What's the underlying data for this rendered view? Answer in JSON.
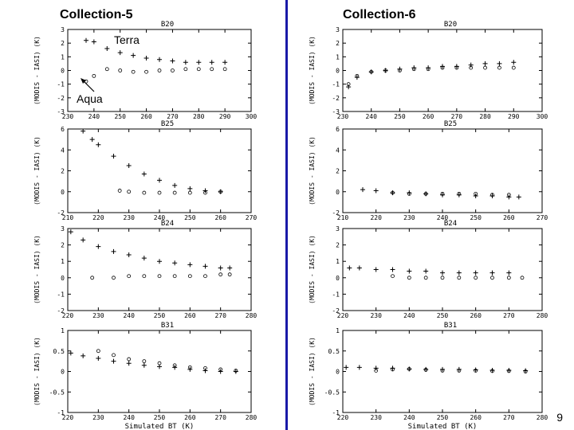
{
  "headings": {
    "left": "Collection-5",
    "right": "Collection-6"
  },
  "slide_number": "9",
  "annotations": {
    "terra": "Terra",
    "aqua": "Aqua"
  },
  "colors": {
    "divider": "#1a1aa8"
  },
  "chart_data": [
    {
      "id": "c5-b20",
      "type": "scatter",
      "title": "B20",
      "ylabel": "(MODIS - IASI) (K)",
      "xlabel": "",
      "xlim": [
        230,
        300
      ],
      "ylim": [
        -3,
        3
      ],
      "xticks": [
        230,
        240,
        250,
        260,
        270,
        280,
        290,
        300
      ],
      "yticks": [
        -3,
        -2,
        -1,
        0,
        1,
        2,
        3
      ],
      "series": [
        {
          "marker": "plus",
          "x": [
            237,
            240,
            245,
            250,
            255,
            260,
            265,
            270,
            275,
            280,
            285,
            290
          ],
          "y": [
            2.2,
            2.1,
            1.6,
            1.3,
            1.1,
            0.9,
            0.8,
            0.7,
            0.6,
            0.6,
            0.6,
            0.6
          ]
        },
        {
          "marker": "circle",
          "x": [
            237,
            240,
            245,
            250,
            255,
            260,
            265,
            270,
            275,
            280,
            285,
            290
          ],
          "y": [
            -0.8,
            -0.4,
            0.1,
            0.0,
            -0.1,
            -0.1,
            0.0,
            0.0,
            0.1,
            0.1,
            0.1,
            0.1
          ]
        }
      ]
    },
    {
      "id": "c6-b20",
      "type": "scatter",
      "title": "B20",
      "ylabel": "(MODIS - IASI) (K)",
      "xlabel": "",
      "xlim": [
        230,
        300
      ],
      "ylim": [
        -3,
        3
      ],
      "xticks": [
        230,
        240,
        250,
        260,
        270,
        280,
        290,
        300
      ],
      "yticks": [
        -3,
        -2,
        -1,
        0,
        1,
        2,
        3
      ],
      "series": [
        {
          "marker": "plus",
          "x": [
            232,
            235,
            240,
            245,
            250,
            255,
            260,
            265,
            270,
            275,
            280,
            285,
            290
          ],
          "y": [
            -1.2,
            -0.5,
            -0.1,
            0.0,
            0.1,
            0.2,
            0.2,
            0.3,
            0.3,
            0.4,
            0.5,
            0.5,
            0.6
          ]
        },
        {
          "marker": "circle",
          "x": [
            232,
            235,
            240,
            245,
            250,
            255,
            260,
            265,
            270,
            275,
            280,
            285,
            290
          ],
          "y": [
            -1.0,
            -0.4,
            -0.1,
            0.0,
            0.0,
            0.1,
            0.1,
            0.2,
            0.2,
            0.2,
            0.2,
            0.2,
            0.2
          ]
        }
      ]
    },
    {
      "id": "c5-b25",
      "type": "scatter",
      "title": "B25",
      "ylabel": "(MODIS - IASI) (K)",
      "xlabel": "",
      "xlim": [
        210,
        270
      ],
      "ylim": [
        -2,
        6
      ],
      "xticks": [
        210,
        220,
        230,
        240,
        250,
        260,
        270
      ],
      "yticks": [
        -2,
        0,
        2,
        4,
        6
      ],
      "series": [
        {
          "marker": "plus",
          "x": [
            215,
            218,
            220,
            225,
            230,
            235,
            240,
            245,
            250,
            255,
            260
          ],
          "y": [
            5.8,
            5.0,
            4.5,
            3.4,
            2.5,
            1.7,
            1.1,
            0.6,
            0.3,
            0.1,
            0.0
          ]
        },
        {
          "marker": "circle",
          "x": [
            227,
            230,
            235,
            240,
            245,
            250,
            255,
            260
          ],
          "y": [
            0.1,
            0.0,
            -0.1,
            -0.1,
            -0.1,
            -0.1,
            -0.1,
            0.0
          ]
        }
      ]
    },
    {
      "id": "c6-b25",
      "type": "scatter",
      "title": "B25",
      "ylabel": "(MODIS - IASI) (K)",
      "xlabel": "",
      "xlim": [
        210,
        270
      ],
      "ylim": [
        -2,
        6
      ],
      "xticks": [
        210,
        220,
        230,
        240,
        250,
        260,
        270
      ],
      "yticks": [
        -2,
        0,
        2,
        4,
        6
      ],
      "series": [
        {
          "marker": "plus",
          "x": [
            216,
            220,
            225,
            230,
            235,
            240,
            245,
            250,
            255,
            260,
            263
          ],
          "y": [
            0.2,
            0.1,
            -0.1,
            -0.1,
            -0.2,
            -0.3,
            -0.3,
            -0.4,
            -0.4,
            -0.5,
            -0.5
          ]
        },
        {
          "marker": "circle",
          "x": [
            225,
            230,
            235,
            240,
            245,
            250,
            255,
            260
          ],
          "y": [
            -0.1,
            -0.2,
            -0.2,
            -0.2,
            -0.2,
            -0.2,
            -0.3,
            -0.3
          ]
        }
      ]
    },
    {
      "id": "c5-b24",
      "type": "scatter",
      "title": "B24",
      "ylabel": "(MODIS - IASI) (K)",
      "xlabel": "",
      "xlim": [
        220,
        280
      ],
      "ylim": [
        -2,
        3
      ],
      "xticks": [
        220,
        230,
        240,
        250,
        260,
        270,
        280
      ],
      "yticks": [
        -2,
        -1,
        0,
        1,
        2,
        3
      ],
      "series": [
        {
          "marker": "plus",
          "x": [
            221,
            225,
            230,
            235,
            240,
            245,
            250,
            255,
            260,
            265,
            270,
            273
          ],
          "y": [
            2.8,
            2.3,
            1.9,
            1.6,
            1.4,
            1.2,
            1.0,
            0.9,
            0.8,
            0.7,
            0.6,
            0.6
          ]
        },
        {
          "marker": "circle",
          "x": [
            228,
            235,
            240,
            245,
            250,
            255,
            260,
            265,
            270,
            273
          ],
          "y": [
            0.0,
            0.0,
            0.1,
            0.1,
            0.1,
            0.1,
            0.1,
            0.1,
            0.2,
            0.2
          ]
        }
      ]
    },
    {
      "id": "c6-b24",
      "type": "scatter",
      "title": "B24",
      "ylabel": "(MODIS - IASI) (K)",
      "xlabel": "",
      "xlim": [
        220,
        280
      ],
      "ylim": [
        -2,
        3
      ],
      "xticks": [
        220,
        230,
        240,
        250,
        260,
        270,
        280
      ],
      "yticks": [
        -2,
        -1,
        0,
        1,
        2,
        3
      ],
      "series": [
        {
          "marker": "plus",
          "x": [
            222,
            225,
            230,
            235,
            240,
            245,
            250,
            255,
            260,
            265,
            270
          ],
          "y": [
            0.6,
            0.6,
            0.5,
            0.5,
            0.4,
            0.4,
            0.3,
            0.3,
            0.3,
            0.3,
            0.3
          ]
        },
        {
          "marker": "circle",
          "x": [
            235,
            240,
            245,
            250,
            255,
            260,
            265,
            270,
            274
          ],
          "y": [
            0.1,
            0.0,
            0.0,
            0.0,
            0.0,
            0.0,
            0.0,
            0.0,
            0.0
          ]
        }
      ]
    },
    {
      "id": "c5-b31",
      "type": "scatter",
      "title": "B31",
      "ylabel": "(MODIS - IASI) (K)",
      "xlabel": "Simulated BT (K)",
      "xlim": [
        220,
        280
      ],
      "ylim": [
        -1.0,
        1.0
      ],
      "xticks": [
        220,
        230,
        240,
        250,
        260,
        270,
        280
      ],
      "yticks": [
        -1.0,
        -0.5,
        0.0,
        0.5,
        1.0
      ],
      "series": [
        {
          "marker": "plus",
          "x": [
            221,
            225,
            230,
            235,
            240,
            245,
            250,
            255,
            260,
            265,
            270,
            275
          ],
          "y": [
            0.45,
            0.38,
            0.32,
            0.25,
            0.2,
            0.15,
            0.12,
            0.1,
            0.05,
            0.02,
            0.0,
            0.0
          ]
        },
        {
          "marker": "circle",
          "x": [
            230,
            235,
            240,
            245,
            250,
            255,
            260,
            265,
            270,
            275
          ],
          "y": [
            0.5,
            0.4,
            0.3,
            0.25,
            0.2,
            0.15,
            0.1,
            0.08,
            0.05,
            0.02
          ]
        }
      ]
    },
    {
      "id": "c6-b31",
      "type": "scatter",
      "title": "B31",
      "ylabel": "(MODIS - IASI) (K)",
      "xlabel": "Simulated BT (K)",
      "xlim": [
        220,
        280
      ],
      "ylim": [
        -1.0,
        1.0
      ],
      "xticks": [
        220,
        230,
        240,
        250,
        260,
        270,
        280
      ],
      "yticks": [
        -1.0,
        -0.5,
        0.0,
        0.5,
        1.0
      ],
      "series": [
        {
          "marker": "plus",
          "x": [
            221,
            225,
            230,
            235,
            240,
            245,
            250,
            255,
            260,
            265,
            270,
            275
          ],
          "y": [
            0.1,
            0.1,
            0.08,
            0.08,
            0.06,
            0.05,
            0.05,
            0.05,
            0.04,
            0.03,
            0.03,
            0.02
          ]
        },
        {
          "marker": "circle",
          "x": [
            230,
            235,
            240,
            245,
            250,
            255,
            260,
            265,
            270,
            275
          ],
          "y": [
            0.02,
            0.05,
            0.06,
            0.04,
            0.02,
            0.02,
            0.02,
            0.01,
            0.01,
            0.0
          ]
        }
      ]
    }
  ]
}
